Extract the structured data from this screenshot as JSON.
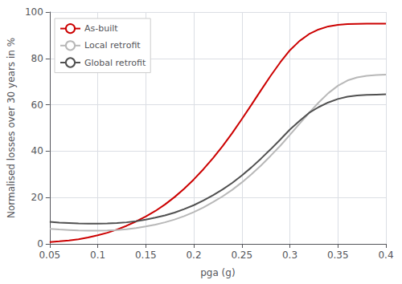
{
  "chart_data": {
    "type": "line",
    "xlabel": "pga (g)",
    "ylabel": "Normalised losses over 30 years in %",
    "xlim": [
      0.05,
      0.4
    ],
    "ylim": [
      0,
      100
    ],
    "xticks": [
      0.05,
      0.1,
      0.15,
      0.2,
      0.25,
      0.3,
      0.35,
      0.4
    ],
    "yticks": [
      0,
      20,
      40,
      60,
      80,
      100
    ],
    "grid": true,
    "legend": "upper left",
    "x": [
      0.05,
      0.06,
      0.07,
      0.08,
      0.09,
      0.1,
      0.11,
      0.12,
      0.13,
      0.14,
      0.15,
      0.16,
      0.17,
      0.18,
      0.19,
      0.2,
      0.21,
      0.22,
      0.23,
      0.24,
      0.25,
      0.26,
      0.27,
      0.28,
      0.29,
      0.3,
      0.31,
      0.32,
      0.33,
      0.34,
      0.35,
      0.36,
      0.37,
      0.38,
      0.39,
      0.4
    ],
    "series": [
      {
        "name": "As-built",
        "color": "#cc0000",
        "values": [
          0.8,
          1.1,
          1.5,
          2.0,
          2.8,
          3.7,
          4.8,
          6.2,
          7.8,
          9.7,
          11.8,
          14.2,
          17.0,
          20.2,
          23.8,
          27.8,
          32.2,
          37.0,
          42.2,
          47.8,
          53.8,
          60.0,
          66.3,
          72.5,
          78.3,
          83.5,
          87.5,
          90.5,
          92.5,
          93.8,
          94.5,
          94.8,
          94.9,
          95.0,
          95.0,
          95.0
        ]
      },
      {
        "name": "Local retrofit",
        "color": "#b8b8b8",
        "values": [
          6.5,
          6.2,
          6.0,
          5.8,
          5.7,
          5.7,
          5.8,
          6.0,
          6.3,
          6.8,
          7.5,
          8.3,
          9.3,
          10.5,
          12.0,
          13.7,
          15.7,
          18.0,
          20.5,
          23.3,
          26.5,
          30.0,
          33.8,
          38.0,
          42.3,
          47.0,
          51.8,
          56.5,
          61.0,
          65.0,
          68.2,
          70.5,
          71.8,
          72.5,
          72.8,
          73.0
        ]
      },
      {
        "name": "Global retrofit",
        "color": "#505050",
        "values": [
          9.5,
          9.2,
          9.0,
          8.8,
          8.7,
          8.7,
          8.8,
          9.0,
          9.3,
          9.8,
          10.5,
          11.3,
          12.3,
          13.5,
          15.0,
          16.7,
          18.7,
          21.0,
          23.5,
          26.3,
          29.5,
          33.0,
          36.8,
          40.8,
          45.0,
          49.3,
          53.0,
          56.5,
          59.0,
          61.0,
          62.5,
          63.5,
          64.0,
          64.3,
          64.4,
          64.5
        ]
      }
    ]
  }
}
